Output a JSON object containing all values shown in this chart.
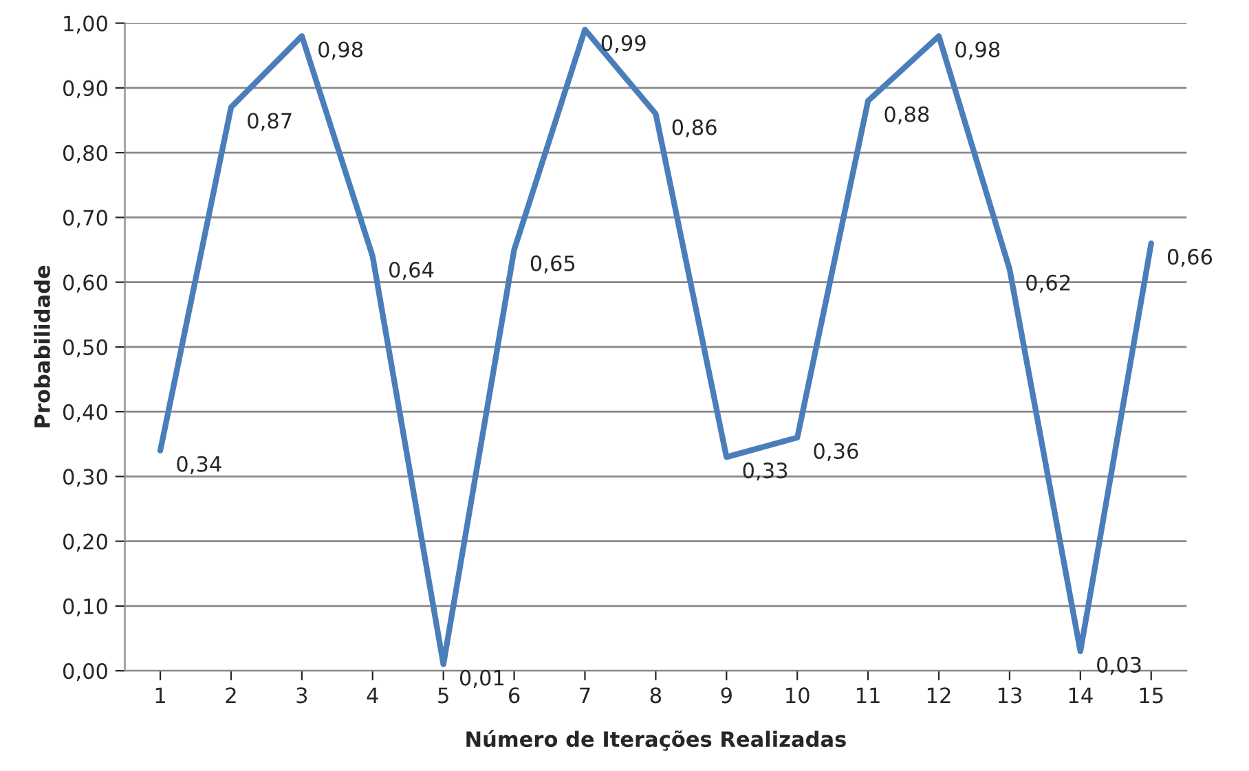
{
  "chart_data": {
    "type": "line",
    "xlabel": "Número de Iterações Realizadas",
    "ylabel": "Probabilidade",
    "categories": [
      "1",
      "2",
      "3",
      "4",
      "5",
      "6",
      "7",
      "8",
      "9",
      "10",
      "11",
      "12",
      "13",
      "14",
      "15"
    ],
    "series": [
      {
        "color": "#4a7ebb",
        "values": [
          0.34,
          0.87,
          0.98,
          0.64,
          0.01,
          0.65,
          0.99,
          0.86,
          0.33,
          0.36,
          0.88,
          0.98,
          0.62,
          0.03,
          0.66
        ],
        "value_labels": [
          "0,34",
          "0,87",
          "0,98",
          "0,64",
          "0,01",
          "0,65",
          "0,99",
          "0,86",
          "0,33",
          "0,36",
          "0,88",
          "0,98",
          "0,62",
          "0,03",
          "0,66"
        ]
      }
    ],
    "ylim": [
      0,
      1
    ],
    "yticks": [
      {
        "value": 0,
        "label": "0,00"
      },
      {
        "value": 0.1,
        "label": "0,10"
      },
      {
        "value": 0.2,
        "label": "0,20"
      },
      {
        "value": 0.3,
        "label": "0,30"
      },
      {
        "value": 0.4,
        "label": "0,40"
      },
      {
        "value": 0.5,
        "label": "0,50"
      },
      {
        "value": 0.6,
        "label": "0,60"
      },
      {
        "value": 0.7,
        "label": "0,70"
      },
      {
        "value": 0.8,
        "label": "0,80"
      },
      {
        "value": 0.9,
        "label": "0,90"
      },
      {
        "value": 1,
        "label": "1,00"
      }
    ],
    "grid": "y",
    "marker": "none",
    "line_style": "solid"
  }
}
